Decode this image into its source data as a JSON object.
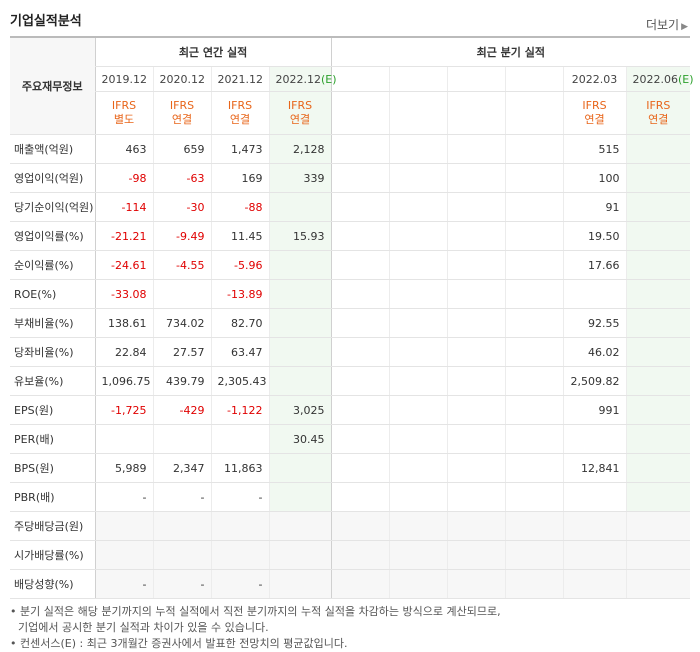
{
  "header": {
    "title": "기업실적분석",
    "more_label": "더보기",
    "more_arrow": "▶"
  },
  "table": {
    "corner_label": "주요재무정보",
    "group_annual": "최근 연간 실적",
    "group_quarter": "최근 분기 실적",
    "periods": [
      "2019.12",
      "2020.12",
      "2021.12",
      "2022.12",
      "",
      "",
      "",
      "",
      "2022.03",
      "2022.06"
    ],
    "period_estimates": [
      "",
      "",
      "",
      "(E)",
      "",
      "",
      "",
      "",
      "",
      "(E)"
    ],
    "ifrs_top": [
      "IFRS",
      "IFRS",
      "IFRS",
      "IFRS",
      "",
      "",
      "",
      "",
      "IFRS",
      "IFRS"
    ],
    "ifrs_bottom": [
      "별도",
      "연결",
      "연결",
      "연결",
      "",
      "",
      "",
      "",
      "연결",
      "연결"
    ],
    "rows": [
      {
        "label": "매출액(억원)",
        "values": [
          "463",
          "659",
          "1,473",
          "2,128",
          "",
          "",
          "",
          "",
          "515",
          ""
        ]
      },
      {
        "label": "영업이익(억원)",
        "values": [
          "-98",
          "-63",
          "169",
          "339",
          "",
          "",
          "",
          "",
          "100",
          ""
        ]
      },
      {
        "label": "당기순이익(억원)",
        "values": [
          "-114",
          "-30",
          "-88",
          "",
          "",
          "",
          "",
          "",
          "91",
          ""
        ]
      },
      {
        "label": "영업이익률(%)",
        "values": [
          "-21.21",
          "-9.49",
          "11.45",
          "15.93",
          "",
          "",
          "",
          "",
          "19.50",
          ""
        ]
      },
      {
        "label": "순이익률(%)",
        "values": [
          "-24.61",
          "-4.55",
          "-5.96",
          "",
          "",
          "",
          "",
          "",
          "17.66",
          ""
        ]
      },
      {
        "label": "ROE(%)",
        "values": [
          "-33.08",
          "",
          "-13.89",
          "",
          "",
          "",
          "",
          "",
          "",
          ""
        ]
      },
      {
        "label": "부채비율(%)",
        "values": [
          "138.61",
          "734.02",
          "82.70",
          "",
          "",
          "",
          "",
          "",
          "92.55",
          ""
        ]
      },
      {
        "label": "당좌비율(%)",
        "values": [
          "22.84",
          "27.57",
          "63.47",
          "",
          "",
          "",
          "",
          "",
          "46.02",
          ""
        ]
      },
      {
        "label": "유보율(%)",
        "values": [
          "1,096.75",
          "439.79",
          "2,305.43",
          "",
          "",
          "",
          "",
          "",
          "2,509.82",
          ""
        ]
      },
      {
        "label": "EPS(원)",
        "values": [
          "-1,725",
          "-429",
          "-1,122",
          "3,025",
          "",
          "",
          "",
          "",
          "991",
          ""
        ]
      },
      {
        "label": "PER(배)",
        "values": [
          "",
          "",
          "",
          "30.45",
          "",
          "",
          "",
          "",
          "",
          ""
        ]
      },
      {
        "label": "BPS(원)",
        "values": [
          "5,989",
          "2,347",
          "11,863",
          "",
          "",
          "",
          "",
          "",
          "12,841",
          ""
        ]
      },
      {
        "label": "PBR(배)",
        "values": [
          "-",
          "-",
          "-",
          "",
          "",
          "",
          "",
          "",
          "",
          ""
        ]
      },
      {
        "label": "주당배당금(원)",
        "values": [
          "",
          "",
          "",
          "",
          "",
          "",
          "",
          "",
          "",
          ""
        ]
      },
      {
        "label": "시가배당률(%)",
        "values": [
          "",
          "",
          "",
          "",
          "",
          "",
          "",
          "",
          "",
          ""
        ]
      },
      {
        "label": "배당성향(%)",
        "values": [
          "-",
          "-",
          "-",
          "",
          "",
          "",
          "",
          "",
          "",
          ""
        ]
      }
    ]
  },
  "notes": [
    "분기 실적은 해당 분기까지의 누적 실적에서 직전 분기까지의 누적 실적을 차감하는 방식으로 계산되므로,",
    "기업에서 공시한 분기 실적과 차이가 있을 수 있습니다.",
    "컨센서스(E) : 최근 3개월간 증권사에서 발표한 전망치의 평균값입니다."
  ],
  "note_bullet": "•",
  "colors": {
    "negative": "#e00000",
    "ifrs": "#e8651a",
    "estimate_bg": "#f1f9f1",
    "estimate_mark": "#2ca02c"
  }
}
